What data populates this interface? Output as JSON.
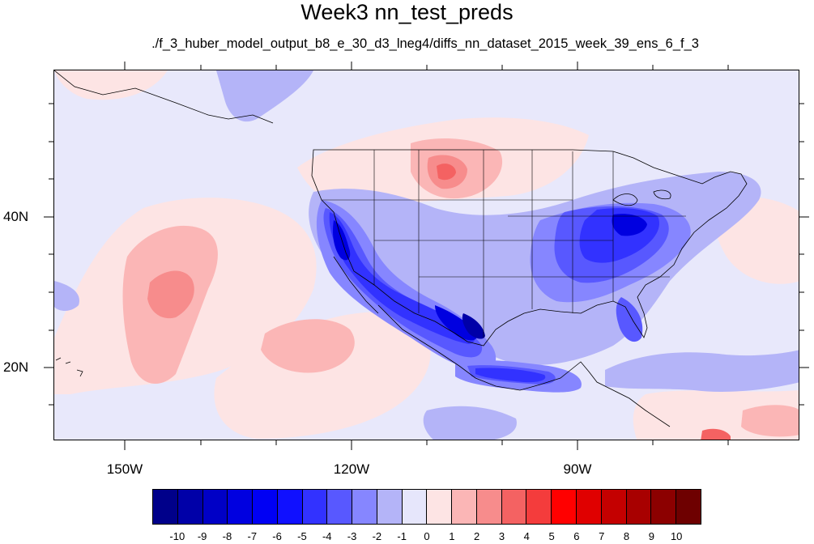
{
  "title": "Week3 nn_test_preds",
  "subtitle": "./f_3_huber_model_output_b8_e_30_d3_lneg4/diffs_nn_dataset_2015_week_39_ens_6_f_3",
  "map": {
    "projection": "lat-lon",
    "lon_range": [
      -160,
      -61
    ],
    "lat_range": [
      11,
      60
    ],
    "background_fill": "#e8e8fb",
    "features": [
      "coastlines",
      "us-state-boundaries",
      "country-boundaries"
    ],
    "y_labels": [
      {
        "text": "40N",
        "lat": 40
      },
      {
        "text": "20N",
        "lat": 20
      }
    ],
    "x_labels": [
      {
        "text": "150W",
        "lon": -150
      },
      {
        "text": "120W",
        "lon": -120
      },
      {
        "text": "90W",
        "lon": -90
      }
    ]
  },
  "colorbar": {
    "colors": [
      "#00008a",
      "#0000a8",
      "#0000c6",
      "#0000e0",
      "#0000f4",
      "#1010ff",
      "#3232ff",
      "#5858ff",
      "#8686ff",
      "#b4b4f8",
      "#e6e6fb",
      "#fde4e4",
      "#fbb6b6",
      "#f78c8c",
      "#f46262",
      "#f43c3c",
      "#ff0000",
      "#e00000",
      "#c40000",
      "#a80000",
      "#8c0000",
      "#6e0000"
    ],
    "labels": [
      "-10",
      "-9",
      "-8",
      "-7",
      "-6",
      "-5",
      "-4",
      "-3",
      "-2",
      "-1",
      "0",
      "1",
      "2",
      "3",
      "4",
      "5",
      "6",
      "7",
      "8",
      "9",
      "10"
    ]
  }
}
